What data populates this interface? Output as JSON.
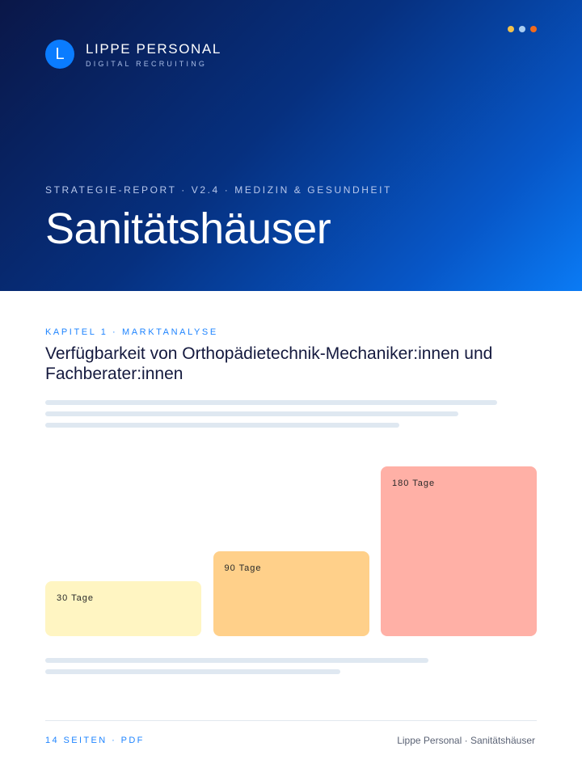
{
  "header": {
    "logo_letter": "L",
    "brand": "LIPPE PERSONAL",
    "brand_sub": "DIGITAL RECRUITING",
    "dot_colors": [
      "#f2c14b",
      "#a9cdf2",
      "#f26a1b"
    ],
    "kicker": "STRATEGIE-REPORT  · V2.4 · MEDIZIN & GESUNDHEIT",
    "title": "Sanitätshäuser"
  },
  "main": {
    "chapter": "KAPITEL 1 · MARKTANALYSE",
    "heading": "Verfügbarkeit  von Orthopädietechnik-Mechaniker:innen und Fachberater:innen"
  },
  "chart_data": {
    "type": "bar",
    "categories": [
      "30 Tage",
      "90 Tage",
      "180 Tage"
    ],
    "values": [
      30,
      90,
      180
    ],
    "unit": "Tage",
    "colors": [
      "#fff5c2",
      "#ffd08a",
      "#ffb0a6"
    ]
  },
  "footer": {
    "left": "14 SEITEN · PDF",
    "right": "Lippe Personal · Sanitätshäuser"
  }
}
